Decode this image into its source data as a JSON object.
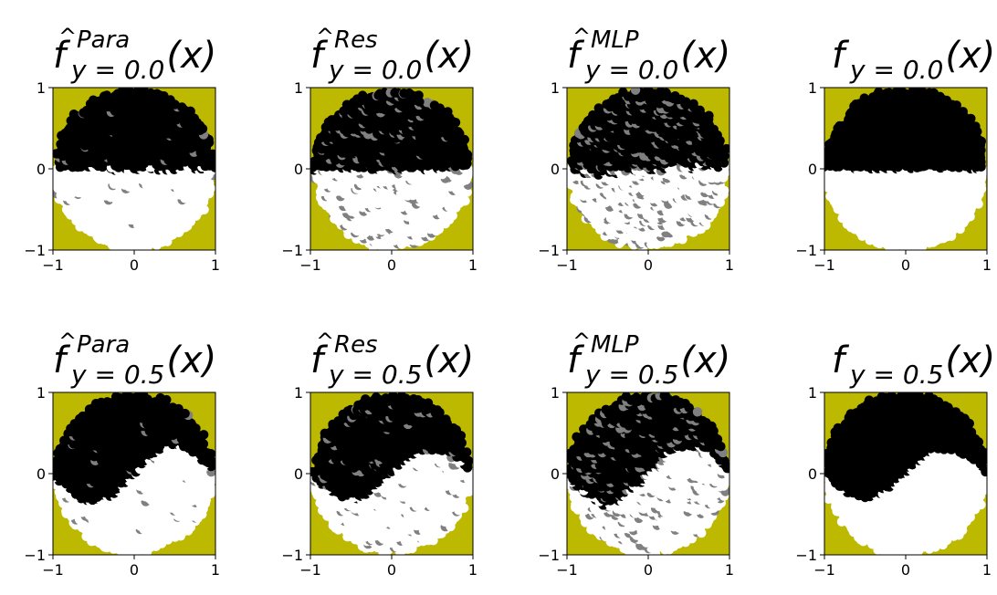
{
  "figure": {
    "colors": {
      "background": "#bdb800",
      "class_zero": "#000000",
      "class_one": "#ffffff",
      "uncertain": "#808080"
    }
  },
  "chart_data": [
    {
      "type": "scatter",
      "row": 0,
      "col": 0,
      "title": {
        "f": "f",
        "hat": true,
        "sup": "Para",
        "sub": "y = 0.0",
        "arg": "(x)"
      },
      "xlim": [
        -1,
        1
      ],
      "ylim": [
        -1,
        1
      ],
      "xticks": [
        "−1",
        "0",
        "1"
      ],
      "yticks": [
        "−1",
        "0",
        "1"
      ],
      "region": {
        "shape": "disk",
        "radius": 0.98,
        "boundary_amplitude": 0.0,
        "gray_fraction": 0.02,
        "noise": 0.06
      },
      "series": [
        {
          "values_label": "0",
          "color": "#000000"
        },
        {
          "values_label": "1",
          "color": "#ffffff"
        }
      ]
    },
    {
      "type": "scatter",
      "row": 0,
      "col": 1,
      "title": {
        "f": "f",
        "hat": true,
        "sup": "Res",
        "sub": "y = 0.0",
        "arg": "(x)"
      },
      "xlim": [
        -1,
        1
      ],
      "ylim": [
        -1,
        1
      ],
      "xticks": [
        "−1",
        "0",
        "1"
      ],
      "yticks": [
        "−1",
        "0",
        "1"
      ],
      "region": {
        "shape": "disk",
        "radius": 0.96,
        "boundary_amplitude": 0.0,
        "gray_fraction": 0.08,
        "noise": 0.05
      },
      "series": [
        {
          "values_label": "0",
          "color": "#000000"
        },
        {
          "values_label": "1",
          "color": "#ffffff"
        }
      ]
    },
    {
      "type": "scatter",
      "row": 0,
      "col": 2,
      "title": {
        "f": "f",
        "hat": true,
        "sup": "MLP",
        "sub": "y = 0.0",
        "arg": "(x)"
      },
      "xlim": [
        -1,
        1
      ],
      "ylim": [
        -1,
        1
      ],
      "xticks": [
        "−1",
        "0",
        "1"
      ],
      "yticks": [
        "−1",
        "0",
        "1"
      ],
      "region": {
        "shape": "disk",
        "radius": 0.97,
        "boundary_amplitude": 0.05,
        "gray_fraction": 0.12,
        "noise": 0.1
      },
      "series": [
        {
          "values_label": "0",
          "color": "#000000"
        },
        {
          "values_label": "1",
          "color": "#ffffff"
        }
      ]
    },
    {
      "type": "scatter",
      "row": 0,
      "col": 3,
      "title": {
        "f": "f",
        "hat": false,
        "sup": "",
        "sub": "y = 0.0",
        "arg": "(x)"
      },
      "xlim": [
        -1,
        1
      ],
      "ylim": [
        -1,
        1
      ],
      "xticks": [
        "−1",
        "0",
        "1"
      ],
      "yticks": [
        "−1",
        "0",
        "1"
      ],
      "region": {
        "shape": "disk",
        "radius": 0.99,
        "boundary_amplitude": 0.0,
        "gray_fraction": 0.0,
        "noise": 0.0
      },
      "series": [
        {
          "values_label": "0",
          "color": "#000000"
        },
        {
          "values_label": "1",
          "color": "#ffffff"
        }
      ]
    },
    {
      "type": "scatter",
      "row": 1,
      "col": 0,
      "title": {
        "f": "f",
        "hat": true,
        "sup": "Para",
        "sub": "y = 0.5",
        "arg": "(x)"
      },
      "xlim": [
        -1,
        1
      ],
      "ylim": [
        -1,
        1
      ],
      "xticks": [
        "−1",
        "0",
        "1"
      ],
      "yticks": [
        "−1",
        "0",
        "1"
      ],
      "region": {
        "shape": "disk",
        "radius": 0.97,
        "boundary_amplitude": 0.35,
        "gray_fraction": 0.02,
        "noise": 0.06
      },
      "series": [
        {
          "values_label": "0",
          "color": "#000000"
        },
        {
          "values_label": "1",
          "color": "#ffffff"
        }
      ]
    },
    {
      "type": "scatter",
      "row": 1,
      "col": 1,
      "title": {
        "f": "f",
        "hat": true,
        "sup": "Res",
        "sub": "y = 0.5",
        "arg": "(x)"
      },
      "xlim": [
        -1,
        1
      ],
      "ylim": [
        -1,
        1
      ],
      "xticks": [
        "−1",
        "0",
        "1"
      ],
      "yticks": [
        "−1",
        "0",
        "1"
      ],
      "region": {
        "shape": "disk",
        "radius": 0.96,
        "boundary_amplitude": 0.3,
        "gray_fraction": 0.04,
        "noise": 0.05
      },
      "series": [
        {
          "values_label": "0",
          "color": "#000000"
        },
        {
          "values_label": "1",
          "color": "#ffffff"
        }
      ]
    },
    {
      "type": "scatter",
      "row": 1,
      "col": 2,
      "title": {
        "f": "f",
        "hat": true,
        "sup": "MLP",
        "sub": "y = 0.5",
        "arg": "(x)"
      },
      "xlim": [
        -1,
        1
      ],
      "ylim": [
        -1,
        1
      ],
      "xticks": [
        "−1",
        "0",
        "1"
      ],
      "yticks": [
        "−1",
        "0",
        "1"
      ],
      "region": {
        "shape": "disk",
        "radius": 0.97,
        "boundary_amplitude": 0.35,
        "gray_fraction": 0.1,
        "noise": 0.1
      },
      "series": [
        {
          "values_label": "0",
          "color": "#000000"
        },
        {
          "values_label": "1",
          "color": "#ffffff"
        }
      ]
    },
    {
      "type": "scatter",
      "row": 1,
      "col": 3,
      "title": {
        "f": "f",
        "hat": false,
        "sup": "",
        "sub": "y = 0.5",
        "arg": "(x)"
      },
      "xlim": [
        -1,
        1
      ],
      "ylim": [
        -1,
        1
      ],
      "xticks": [
        "−1",
        "0",
        "1"
      ],
      "yticks": [
        "−1",
        "0",
        "1"
      ],
      "region": {
        "shape": "disk",
        "radius": 0.99,
        "boundary_amplitude": 0.3,
        "gray_fraction": 0.0,
        "noise": 0.0
      },
      "series": [
        {
          "values_label": "0",
          "color": "#000000"
        },
        {
          "values_label": "1",
          "color": "#ffffff"
        }
      ]
    }
  ]
}
